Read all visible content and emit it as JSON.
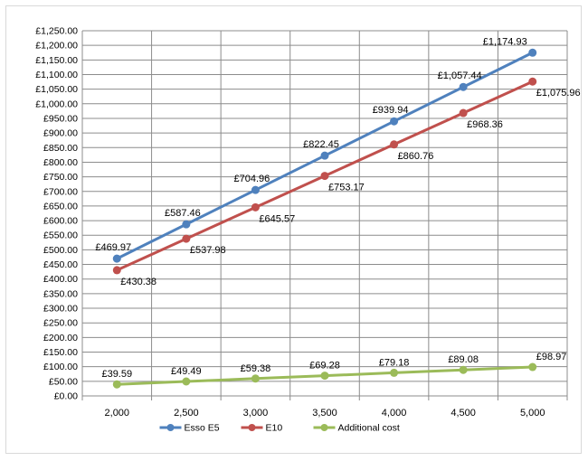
{
  "chart_data": {
    "type": "line",
    "title": "",
    "xlabel": "",
    "ylabel": "",
    "x": [
      2000,
      2500,
      3000,
      3500,
      4000,
      4500,
      5000
    ],
    "x_tick_labels": [
      "2,000",
      "2,500",
      "3,000",
      "3,500",
      "4,000",
      "4,500",
      "5,000"
    ],
    "ylim": [
      0,
      1250
    ],
    "y_tick_step": 50,
    "y_tick_labels": [
      "£0.00",
      "£50.00",
      "£100.00",
      "£150.00",
      "£200.00",
      "£250.00",
      "£300.00",
      "£350.00",
      "£400.00",
      "£450.00",
      "£500.00",
      "£550.00",
      "£600.00",
      "£650.00",
      "£700.00",
      "£750.00",
      "£800.00",
      "£850.00",
      "£900.00",
      "£950.00",
      "£1,000.00",
      "£1,050.00",
      "£1,100.00",
      "£1,150.00",
      "£1,200.00",
      "£1,250.00"
    ],
    "grid": true,
    "legend_position": "bottom",
    "series": [
      {
        "name": "Esso E5",
        "color": "#4f81bd",
        "values": [
          469.97,
          587.46,
          704.96,
          822.45,
          939.94,
          1057.44,
          1174.93
        ],
        "labels": [
          "£469.97",
          "£587.46",
          "£704.96",
          "£822.45",
          "£939.94",
          "£1,057.44",
          "£1,174.93"
        ]
      },
      {
        "name": "E10",
        "color": "#c0504d",
        "values": [
          430.38,
          537.98,
          645.57,
          753.17,
          860.76,
          968.36,
          1075.96
        ],
        "labels": [
          "£430.38",
          "£537.98",
          "£645.57",
          "£753.17",
          "£860.76",
          "£968.36",
          "£1,075.96"
        ]
      },
      {
        "name": "Additional cost",
        "color": "#9bbb59",
        "values": [
          39.59,
          49.49,
          59.38,
          69.28,
          79.18,
          89.08,
          98.97
        ],
        "labels": [
          "£39.59",
          "£49.49",
          "£59.38",
          "£69.28",
          "£79.18",
          "£89.08",
          "£98.97"
        ]
      }
    ]
  }
}
